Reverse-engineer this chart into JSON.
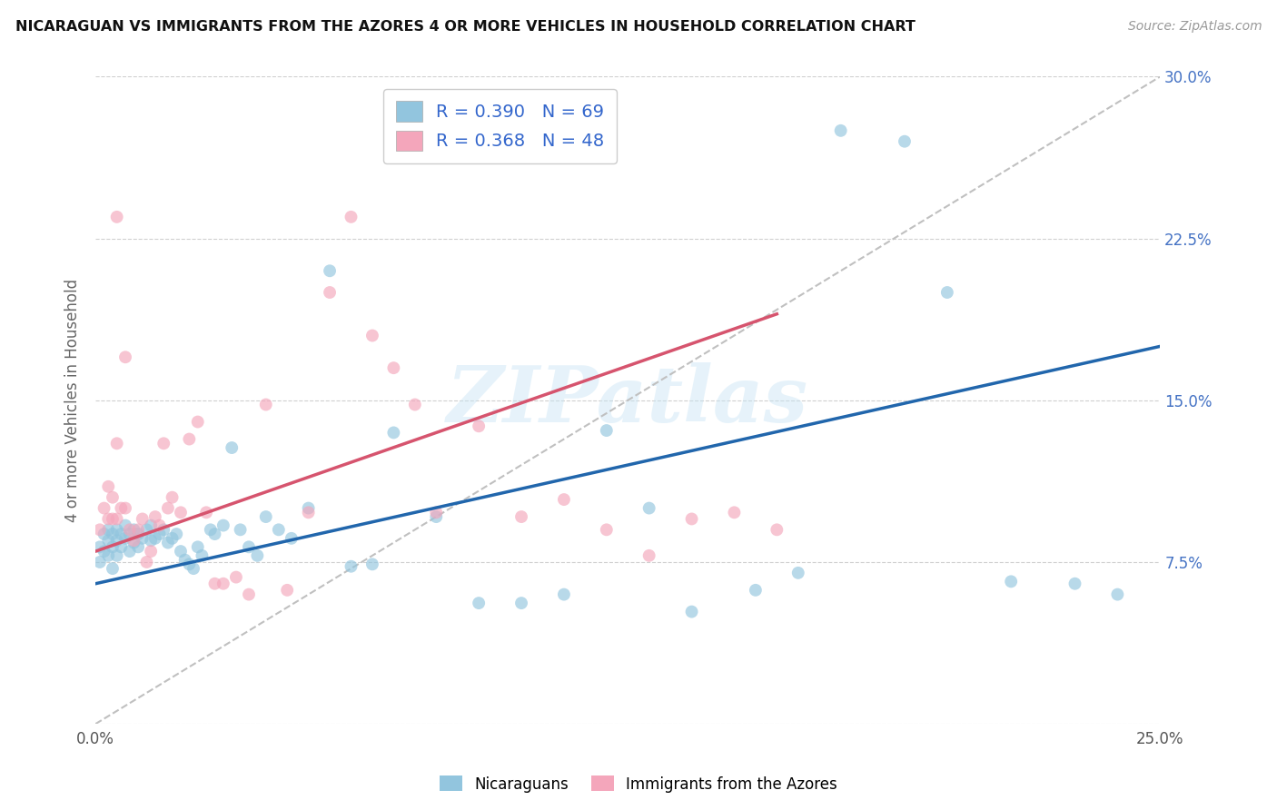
{
  "title": "NICARAGUAN VS IMMIGRANTS FROM THE AZORES 4 OR MORE VEHICLES IN HOUSEHOLD CORRELATION CHART",
  "source": "Source: ZipAtlas.com",
  "ylabel": "4 or more Vehicles in Household",
  "xmin": 0.0,
  "xmax": 0.25,
  "ymin": 0.0,
  "ymax": 0.3,
  "blue_color": "#92c5de",
  "pink_color": "#f4a6bb",
  "blue_line_color": "#2166ac",
  "pink_line_color": "#d6546e",
  "dashed_line_color": "#c0c0c0",
  "legend_label_blue": "Nicaraguans",
  "legend_label_pink": "Immigrants from the Azores",
  "R_blue": "0.390",
  "N_blue": "69",
  "R_pink": "0.368",
  "N_pink": "48",
  "watermark": "ZIPatlas",
  "background_color": "#ffffff",
  "grid_color": "#d0d0d0",
  "blue_line_x0": 0.0,
  "blue_line_y0": 0.065,
  "blue_line_x1": 0.25,
  "blue_line_y1": 0.175,
  "pink_line_x0": 0.0,
  "pink_line_y0": 0.08,
  "pink_line_x1": 0.16,
  "pink_line_y1": 0.19,
  "blue_scatter_x": [
    0.001,
    0.001,
    0.002,
    0.002,
    0.003,
    0.003,
    0.003,
    0.004,
    0.004,
    0.004,
    0.005,
    0.005,
    0.005,
    0.006,
    0.006,
    0.007,
    0.007,
    0.008,
    0.008,
    0.009,
    0.009,
    0.01,
    0.01,
    0.011,
    0.012,
    0.013,
    0.013,
    0.014,
    0.015,
    0.016,
    0.017,
    0.018,
    0.019,
    0.02,
    0.021,
    0.022,
    0.023,
    0.024,
    0.025,
    0.027,
    0.028,
    0.03,
    0.032,
    0.034,
    0.036,
    0.038,
    0.04,
    0.043,
    0.046,
    0.05,
    0.055,
    0.06,
    0.065,
    0.07,
    0.08,
    0.09,
    0.1,
    0.11,
    0.12,
    0.13,
    0.14,
    0.155,
    0.165,
    0.175,
    0.19,
    0.2,
    0.215,
    0.23,
    0.24
  ],
  "blue_scatter_y": [
    0.075,
    0.082,
    0.08,
    0.088,
    0.078,
    0.085,
    0.09,
    0.082,
    0.088,
    0.072,
    0.085,
    0.09,
    0.078,
    0.082,
    0.088,
    0.086,
    0.092,
    0.08,
    0.088,
    0.084,
    0.09,
    0.088,
    0.082,
    0.086,
    0.09,
    0.085,
    0.092,
    0.086,
    0.088,
    0.09,
    0.084,
    0.086,
    0.088,
    0.08,
    0.076,
    0.074,
    0.072,
    0.082,
    0.078,
    0.09,
    0.088,
    0.092,
    0.128,
    0.09,
    0.082,
    0.078,
    0.096,
    0.09,
    0.086,
    0.1,
    0.21,
    0.073,
    0.074,
    0.135,
    0.096,
    0.056,
    0.056,
    0.06,
    0.136,
    0.1,
    0.052,
    0.062,
    0.07,
    0.275,
    0.27,
    0.2,
    0.066,
    0.065,
    0.06
  ],
  "pink_scatter_x": [
    0.001,
    0.002,
    0.003,
    0.003,
    0.004,
    0.004,
    0.005,
    0.005,
    0.006,
    0.007,
    0.008,
    0.009,
    0.01,
    0.011,
    0.012,
    0.013,
    0.014,
    0.015,
    0.016,
    0.017,
    0.018,
    0.02,
    0.022,
    0.024,
    0.026,
    0.028,
    0.03,
    0.033,
    0.036,
    0.04,
    0.045,
    0.05,
    0.055,
    0.06,
    0.065,
    0.07,
    0.075,
    0.08,
    0.09,
    0.1,
    0.11,
    0.12,
    0.13,
    0.14,
    0.15,
    0.16,
    0.005,
    0.007
  ],
  "pink_scatter_y": [
    0.09,
    0.1,
    0.095,
    0.11,
    0.095,
    0.105,
    0.095,
    0.13,
    0.1,
    0.1,
    0.09,
    0.085,
    0.09,
    0.095,
    0.075,
    0.08,
    0.096,
    0.092,
    0.13,
    0.1,
    0.105,
    0.098,
    0.132,
    0.14,
    0.098,
    0.065,
    0.065,
    0.068,
    0.06,
    0.148,
    0.062,
    0.098,
    0.2,
    0.235,
    0.18,
    0.165,
    0.148,
    0.098,
    0.138,
    0.096,
    0.104,
    0.09,
    0.078,
    0.095,
    0.098,
    0.09,
    0.235,
    0.17
  ]
}
